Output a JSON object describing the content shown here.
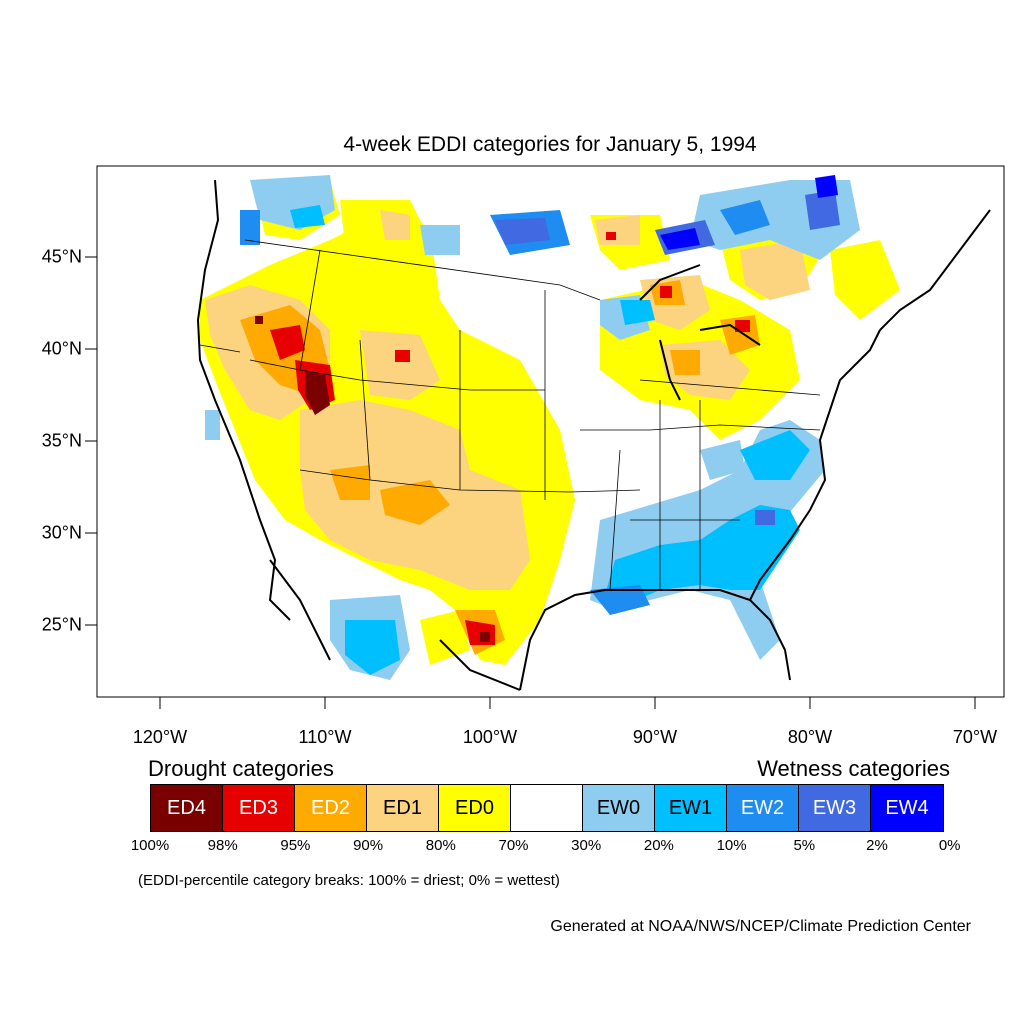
{
  "title": "4-week EDDI categories for January 5, 1994",
  "map": {
    "lon_ticks": [
      "120°W",
      "110°W",
      "100°W",
      "90°W",
      "80°W",
      "70°W"
    ],
    "lat_ticks": [
      "45°N",
      "40°N",
      "35°N",
      "30°N",
      "25°N"
    ],
    "lon_range": [
      -124,
      -68
    ],
    "lat_range": [
      20.9,
      49.8
    ]
  },
  "legend": {
    "drought_heading": "Drought categories",
    "wetness_heading": "Wetness categories",
    "categories": [
      {
        "label": "ED4",
        "color": "#7a0000",
        "text_color": "#ffffff"
      },
      {
        "label": "ED3",
        "color": "#e60000",
        "text_color": "#ffffff"
      },
      {
        "label": "ED2",
        "color": "#ffaa00",
        "text_color": "#ffffff"
      },
      {
        "label": "ED1",
        "color": "#fcd37f",
        "text_color": "#000000"
      },
      {
        "label": "ED0",
        "color": "#ffff00",
        "text_color": "#000000"
      },
      {
        "label": "",
        "color": "#ffffff",
        "text_color": "#000000"
      },
      {
        "label": "EW0",
        "color": "#8ecdf0",
        "text_color": "#000000"
      },
      {
        "label": "EW1",
        "color": "#00bfff",
        "text_color": "#000000"
      },
      {
        "label": "EW2",
        "color": "#1e8cf0",
        "text_color": "#ffffff"
      },
      {
        "label": "EW3",
        "color": "#4169e1",
        "text_color": "#ffffff"
      },
      {
        "label": "EW4",
        "color": "#0000ff",
        "text_color": "#ffffff"
      }
    ],
    "breaks": [
      "100%",
      "98%",
      "95%",
      "90%",
      "80%",
      "70%",
      "30%",
      "20%",
      "10%",
      "5%",
      "2%",
      "0%"
    ]
  },
  "note": "(EDDI-percentile category breaks: 100% = driest; 0% = wettest)",
  "credit": "Generated at NOAA/NWS/NCEP/Climate Prediction Center"
}
